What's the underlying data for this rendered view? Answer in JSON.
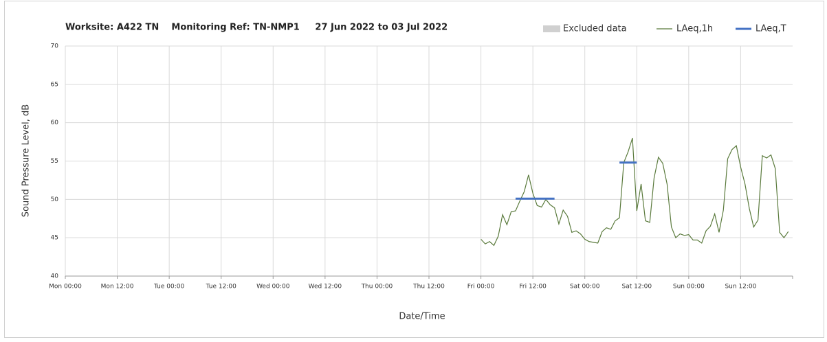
{
  "chart_data": {
    "type": "line",
    "title": "Worksite: A422 TN    Monitoring Ref: TN-NMP1     27 Jun 2022 to 03 Jul 2022",
    "xlabel": "Date/Time",
    "ylabel": "Sound Pressure Level, dB",
    "xlim": [
      0,
      168
    ],
    "ylim": [
      40,
      70
    ],
    "xticks": [
      {
        "value": 0,
        "label": "Mon 00:00"
      },
      {
        "value": 12,
        "label": "Mon 12:00"
      },
      {
        "value": 24,
        "label": "Tue 00:00"
      },
      {
        "value": 36,
        "label": "Tue 12:00"
      },
      {
        "value": 48,
        "label": "Wed 00:00"
      },
      {
        "value": 60,
        "label": "Wed 12:00"
      },
      {
        "value": 72,
        "label": "Thu 00:00"
      },
      {
        "value": 84,
        "label": "Thu 12:00"
      },
      {
        "value": 96,
        "label": "Fri 00:00"
      },
      {
        "value": 108,
        "label": "Fri 12:00"
      },
      {
        "value": 120,
        "label": "Sat 00:00"
      },
      {
        "value": 132,
        "label": "Sat 12:00"
      },
      {
        "value": 144,
        "label": "Sun 00:00"
      },
      {
        "value": 156,
        "label": "Sun 12:00"
      }
    ],
    "yticks": [
      40,
      45,
      50,
      55,
      60,
      65,
      70
    ],
    "grid": true,
    "legend": "top-right",
    "series": [
      {
        "name": "Excluded data",
        "color": "#d0d0d0",
        "x": [],
        "values": []
      },
      {
        "name": "LAeq,1h",
        "color": "#5a7a3c",
        "x": [
          96,
          97,
          98,
          99,
          100,
          101,
          102,
          103,
          104,
          105,
          106,
          107,
          108,
          109,
          110,
          111,
          112,
          113,
          114,
          115,
          116,
          117,
          118,
          119,
          120,
          121,
          122,
          123,
          124,
          125,
          126,
          127,
          128,
          129,
          130,
          131,
          132,
          133,
          134,
          135,
          136,
          137,
          138,
          139,
          140,
          141,
          142,
          143,
          144,
          145,
          146,
          147,
          148,
          149,
          150,
          151,
          152,
          153,
          154,
          155,
          156,
          157,
          158,
          159,
          160,
          161,
          162,
          163,
          164,
          165,
          166,
          167
        ],
        "values": [
          44.8,
          44.2,
          44.5,
          44.0,
          45.2,
          48.0,
          46.7,
          48.4,
          48.5,
          49.8,
          51.0,
          53.2,
          50.8,
          49.2,
          49.0,
          50.0,
          49.3,
          48.9,
          46.8,
          48.6,
          47.8,
          45.7,
          45.9,
          45.5,
          44.8,
          44.5,
          44.4,
          44.3,
          45.8,
          46.3,
          46.1,
          47.2,
          47.6,
          54.8,
          56.2,
          58.0,
          48.5,
          52.0,
          47.2,
          47.0,
          52.8,
          55.5,
          54.7,
          52.0,
          46.4,
          45.0,
          45.5,
          45.3,
          45.4,
          44.7,
          44.7,
          44.3,
          45.9,
          46.5,
          48.1,
          45.7,
          48.6,
          55.3,
          56.5,
          57.0,
          54.2,
          52.0,
          48.8,
          46.4,
          47.3,
          55.7,
          55.4,
          55.8,
          54.0,
          45.7,
          45.0,
          45.8
        ]
      },
      {
        "name": "LAeq,T",
        "color": "#4472c4",
        "x": [
          104,
          113,
          120,
          128,
          132
        ],
        "values": [
          50.1,
          50.1,
          null,
          54.8,
          54.8
        ]
      }
    ]
  }
}
